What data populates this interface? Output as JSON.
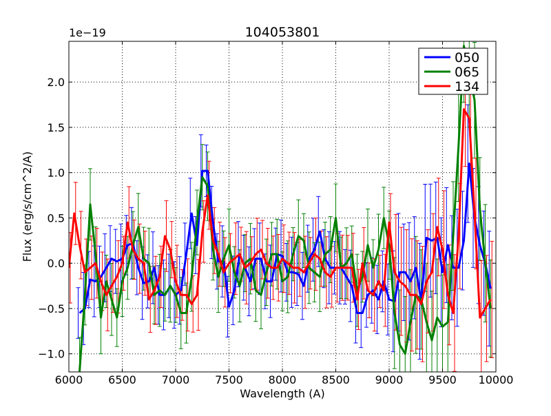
{
  "chart_data": {
    "type": "line",
    "title": "104053801",
    "xlabel": "Wavelength (A)",
    "ylabel": "Flux (erg/s/cm^2/A)",
    "y_offset_text": "1e−19",
    "xlim": [
      6000,
      10000
    ],
    "ylim": [
      -1.2,
      2.45
    ],
    "xticks": [
      6000,
      6500,
      7000,
      7500,
      8000,
      8500,
      9000,
      9500,
      10000
    ],
    "xtick_labels": [
      "6000",
      "6500",
      "7000",
      "7500",
      "8000",
      "8500",
      "9000",
      "9500",
      "10000"
    ],
    "yticks": [
      -1.0,
      -0.5,
      0.0,
      0.5,
      1.0,
      1.5,
      2.0
    ],
    "ytick_labels": [
      "−1.0",
      "−0.5",
      "0.0",
      "0.5",
      "1.0",
      "1.5",
      "2.0"
    ],
    "grid": true,
    "legend_position": "top-right",
    "series": [
      {
        "name": "050",
        "color": "#0000ff",
        "x": [
          6100,
          6150,
          6200,
          6250,
          6300,
          6350,
          6400,
          6450,
          6500,
          6550,
          6600,
          6650,
          6700,
          6750,
          6800,
          6850,
          6900,
          6950,
          7000,
          7050,
          7100,
          7150,
          7200,
          7250,
          7300,
          7350,
          7400,
          7450,
          7500,
          7550,
          7600,
          7650,
          7700,
          7750,
          7800,
          7850,
          7900,
          7950,
          8000,
          8050,
          8100,
          8150,
          8200,
          8250,
          8300,
          8350,
          8400,
          8450,
          8500,
          8550,
          8600,
          8650,
          8700,
          8750,
          8800,
          8850,
          8900,
          8950,
          9000,
          9050,
          9100,
          9150,
          9200,
          9250,
          9300,
          9350,
          9400,
          9450,
          9500,
          9550,
          9600,
          9650,
          9700,
          9750,
          9800,
          9850,
          9900,
          9950
        ],
        "y": [
          -0.55,
          -0.5,
          -0.18,
          -0.2,
          -0.15,
          -0.05,
          0.05,
          0.02,
          0.05,
          0.2,
          0.22,
          -0.05,
          -0.22,
          -0.2,
          -0.05,
          -0.35,
          -0.35,
          -0.25,
          -0.35,
          -0.3,
          0.1,
          0.55,
          0.2,
          1.02,
          1.02,
          0.45,
          0.02,
          0.02,
          -0.48,
          -0.3,
          0.1,
          -0.05,
          -0.2,
          0.05,
          0.05,
          -0.2,
          -0.2,
          0.1,
          0.08,
          -0.1,
          -0.1,
          -0.12,
          -0.25,
          0.05,
          0.15,
          0.35,
          0.05,
          -0.05,
          -0.05,
          -0.05,
          -0.15,
          -0.25,
          -0.55,
          -0.55,
          -0.35,
          -0.3,
          -0.4,
          -0.2,
          -0.4,
          -0.42,
          -0.1,
          -0.1,
          -0.2,
          -0.05,
          -0.42,
          0.28,
          0.25,
          0.28,
          -0.1,
          0.2,
          -0.05,
          -0.05,
          0.25,
          1.1,
          0.5,
          0.2,
          0.0,
          -0.28
        ]
      },
      {
        "name": "065",
        "color": "#008000",
        "x": [
          6100,
          6150,
          6200,
          6250,
          6300,
          6350,
          6400,
          6450,
          6500,
          6550,
          6600,
          6650,
          6700,
          6750,
          6800,
          6850,
          6900,
          6950,
          7000,
          7050,
          7100,
          7150,
          7200,
          7250,
          7300,
          7350,
          7400,
          7450,
          7500,
          7550,
          7600,
          7650,
          7700,
          7750,
          7800,
          7850,
          7900,
          7950,
          8000,
          8050,
          8100,
          8150,
          8200,
          8250,
          8300,
          8350,
          8400,
          8450,
          8500,
          8550,
          8600,
          8650,
          8700,
          8750,
          8800,
          8850,
          8900,
          8950,
          9000,
          9050,
          9100,
          9150,
          9200,
          9250,
          9300,
          9350,
          9400,
          9450,
          9500,
          9550,
          9600,
          9650,
          9700,
          9750,
          9800,
          9850,
          9900,
          9950
        ],
        "y": [
          -1.2,
          -0.35,
          0.65,
          0.1,
          -0.6,
          -0.2,
          -0.4,
          -0.6,
          -0.2,
          -0.05,
          0.2,
          0.4,
          0.05,
          0.0,
          -0.35,
          -0.3,
          -0.35,
          -0.25,
          -0.35,
          -0.55,
          -0.55,
          -0.15,
          0.45,
          0.95,
          0.85,
          0.15,
          -0.15,
          0.05,
          0.2,
          -0.1,
          -0.25,
          0.0,
          0.05,
          -0.3,
          -0.35,
          -0.1,
          0.1,
          0.1,
          -0.2,
          -0.15,
          0.1,
          0.3,
          0.25,
          -0.05,
          -0.1,
          -0.15,
          0.1,
          0.15,
          0.5,
          -0.05,
          0.0,
          0.1,
          -0.3,
          -0.15,
          0.2,
          -0.05,
          0.15,
          0.5,
          0.2,
          -0.55,
          -0.9,
          -1.0,
          -0.65,
          -0.35,
          -0.4,
          -0.65,
          -0.85,
          -0.6,
          -0.7,
          -0.65,
          0.3,
          1.3,
          2.4,
          2.1,
          1.8,
          0.6,
          0.0,
          -0.5
        ]
      },
      {
        "name": "134",
        "color": "#ff0000",
        "x": [
          6000,
          6050,
          6100,
          6150,
          6200,
          6250,
          6300,
          6350,
          6400,
          6450,
          6500,
          6550,
          6600,
          6650,
          6700,
          6750,
          6800,
          6850,
          6900,
          6950,
          7000,
          7050,
          7100,
          7150,
          7200,
          7250,
          7300,
          7350,
          7400,
          7450,
          7500,
          7550,
          7600,
          7650,
          7700,
          7750,
          7800,
          7850,
          7900,
          7950,
          8000,
          8050,
          8100,
          8150,
          8200,
          8250,
          8300,
          8350,
          8400,
          8450,
          8500,
          8550,
          8600,
          8650,
          8700,
          8750,
          8800,
          8850,
          8900,
          8950,
          9000,
          9050,
          9100,
          9150,
          9200,
          9250,
          9300,
          9350,
          9400,
          9450,
          9500,
          9550,
          9600,
          9650,
          9700,
          9750,
          9800,
          9850,
          9900,
          9950
        ],
        "y": [
          -0.05,
          0.55,
          0.2,
          -0.1,
          -0.05,
          0.0,
          -0.2,
          -0.35,
          -0.25,
          -0.15,
          0.0,
          0.45,
          0.15,
          0.05,
          0.0,
          -0.4,
          -0.3,
          -0.15,
          0.3,
          0.15,
          -0.2,
          -0.35,
          -0.35,
          -0.45,
          -0.35,
          0.35,
          0.75,
          0.25,
          0.1,
          -0.1,
          0.0,
          0.05,
          0.1,
          -0.05,
          0.0,
          0.1,
          0.15,
          0.0,
          -0.05,
          -0.05,
          0.05,
          0.0,
          -0.05,
          -0.05,
          -0.1,
          0.0,
          0.1,
          0.05,
          -0.1,
          -0.15,
          -0.05,
          -0.05,
          -0.05,
          -0.05,
          -0.4,
          0.0,
          -0.3,
          -0.35,
          -0.2,
          -0.3,
          0.45,
          -0.1,
          -0.2,
          -0.25,
          -0.35,
          -0.35,
          -0.45,
          -0.2,
          -0.1,
          0.4,
          0.15,
          -0.35,
          -0.55,
          0.3,
          1.7,
          1.6,
          0.55,
          -0.6,
          -0.5,
          -0.4
        ]
      }
    ]
  }
}
